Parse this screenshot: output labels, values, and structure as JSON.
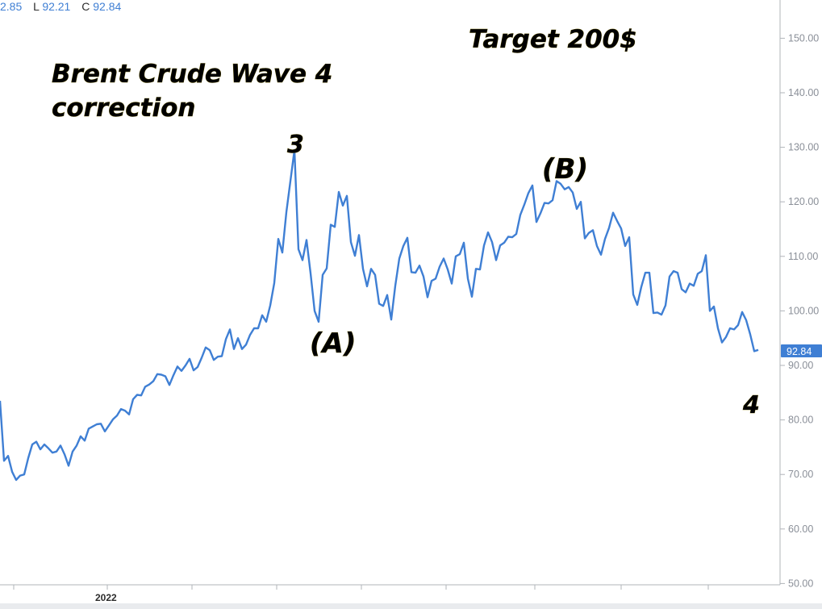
{
  "header": {
    "open_label": "2.85",
    "low_label": "L",
    "low_value": "92.21",
    "close_label": "C",
    "close_value": "92.84"
  },
  "annotations": {
    "title_line1": "Brent Crude Wave 4",
    "title_line2": "correction",
    "target": "Target 200$",
    "wave3": "3",
    "waveA": "(A)",
    "waveB": "(B)",
    "wave4": "4"
  },
  "last_price_label": "92.84",
  "colors": {
    "line": "#3f7fd4",
    "price_tag_bg": "#3f7fd4",
    "axis": "#b0b4ba",
    "text": "#000000"
  },
  "chart_data": {
    "type": "line",
    "title": "Brent Crude Wave 4 correction",
    "xlabel": "",
    "ylabel": "",
    "ylim": [
      50,
      157
    ],
    "yticks": [
      "150.00",
      "140.00",
      "130.00",
      "120.00",
      "110.00",
      "100.00",
      "90.00",
      "80.00",
      "70.00",
      "60.00",
      "50.00"
    ],
    "xtick_labels": [
      "2022"
    ],
    "grid": false,
    "legend": "none",
    "series": [
      {
        "values": [
          83.5,
          72.5,
          73.4,
          70.5,
          69.0,
          69.8,
          70.0,
          73.0,
          75.5,
          76.0,
          74.6,
          75.5,
          74.8,
          74.0,
          74.2,
          75.3,
          73.7,
          71.6,
          74.2,
          75.3,
          77.0,
          76.2,
          78.4,
          78.8,
          79.2,
          79.3,
          77.9,
          79.0,
          80.1,
          80.8,
          82.0,
          81.7,
          81.0,
          83.8,
          84.6,
          84.5,
          86.1,
          86.5,
          87.1,
          88.4,
          88.3,
          88.0,
          86.4,
          88.2,
          89.8,
          89.0,
          90.0,
          91.2,
          89.1,
          89.7,
          91.4,
          93.3,
          92.8,
          91.0,
          91.6,
          91.7,
          94.8,
          96.6,
          93.0,
          95.0,
          93.0,
          93.8,
          95.6,
          96.8,
          96.8,
          99.2,
          98.0,
          101.0,
          105.1,
          113.2,
          110.7,
          118.1,
          123.8,
          129.5,
          111.3,
          109.3,
          113.0,
          106.9,
          100.0,
          98.0,
          106.6,
          107.8,
          115.8,
          115.4,
          121.8,
          119.3,
          121.1,
          112.6,
          110.1,
          113.9,
          107.7,
          104.5,
          107.7,
          106.6,
          101.3,
          100.9,
          102.9,
          98.4,
          104.6,
          109.6,
          111.9,
          113.4,
          107.1,
          107.0,
          108.3,
          106.3,
          102.5,
          105.5,
          105.9,
          108.1,
          109.6,
          107.6,
          105.0,
          110.0,
          110.4,
          112.5,
          105.9,
          102.6,
          107.7,
          107.6,
          112.0,
          114.4,
          112.6,
          109.3,
          112.0,
          112.5,
          113.6,
          113.5,
          114.1,
          117.6,
          119.5,
          121.6,
          123.0,
          116.3,
          117.9,
          119.8,
          119.7,
          120.3,
          123.8,
          123.3,
          122.3,
          122.7,
          121.7,
          118.7,
          120.0,
          113.3,
          114.3,
          114.8,
          111.9,
          110.3,
          113.2,
          115.2,
          118.0,
          116.5,
          115.1,
          111.9,
          113.5,
          103.0,
          101.1,
          104.4,
          107.0,
          107.0,
          99.6,
          99.7,
          99.3,
          101.0,
          106.3,
          107.3,
          107.0,
          104.0,
          103.4,
          105.0,
          104.6,
          106.8,
          107.3,
          110.2,
          100.0,
          100.8,
          96.8,
          94.2,
          95.2,
          96.8,
          96.6,
          97.4,
          99.8,
          98.3,
          95.7,
          92.6,
          92.84
        ]
      }
    ]
  }
}
